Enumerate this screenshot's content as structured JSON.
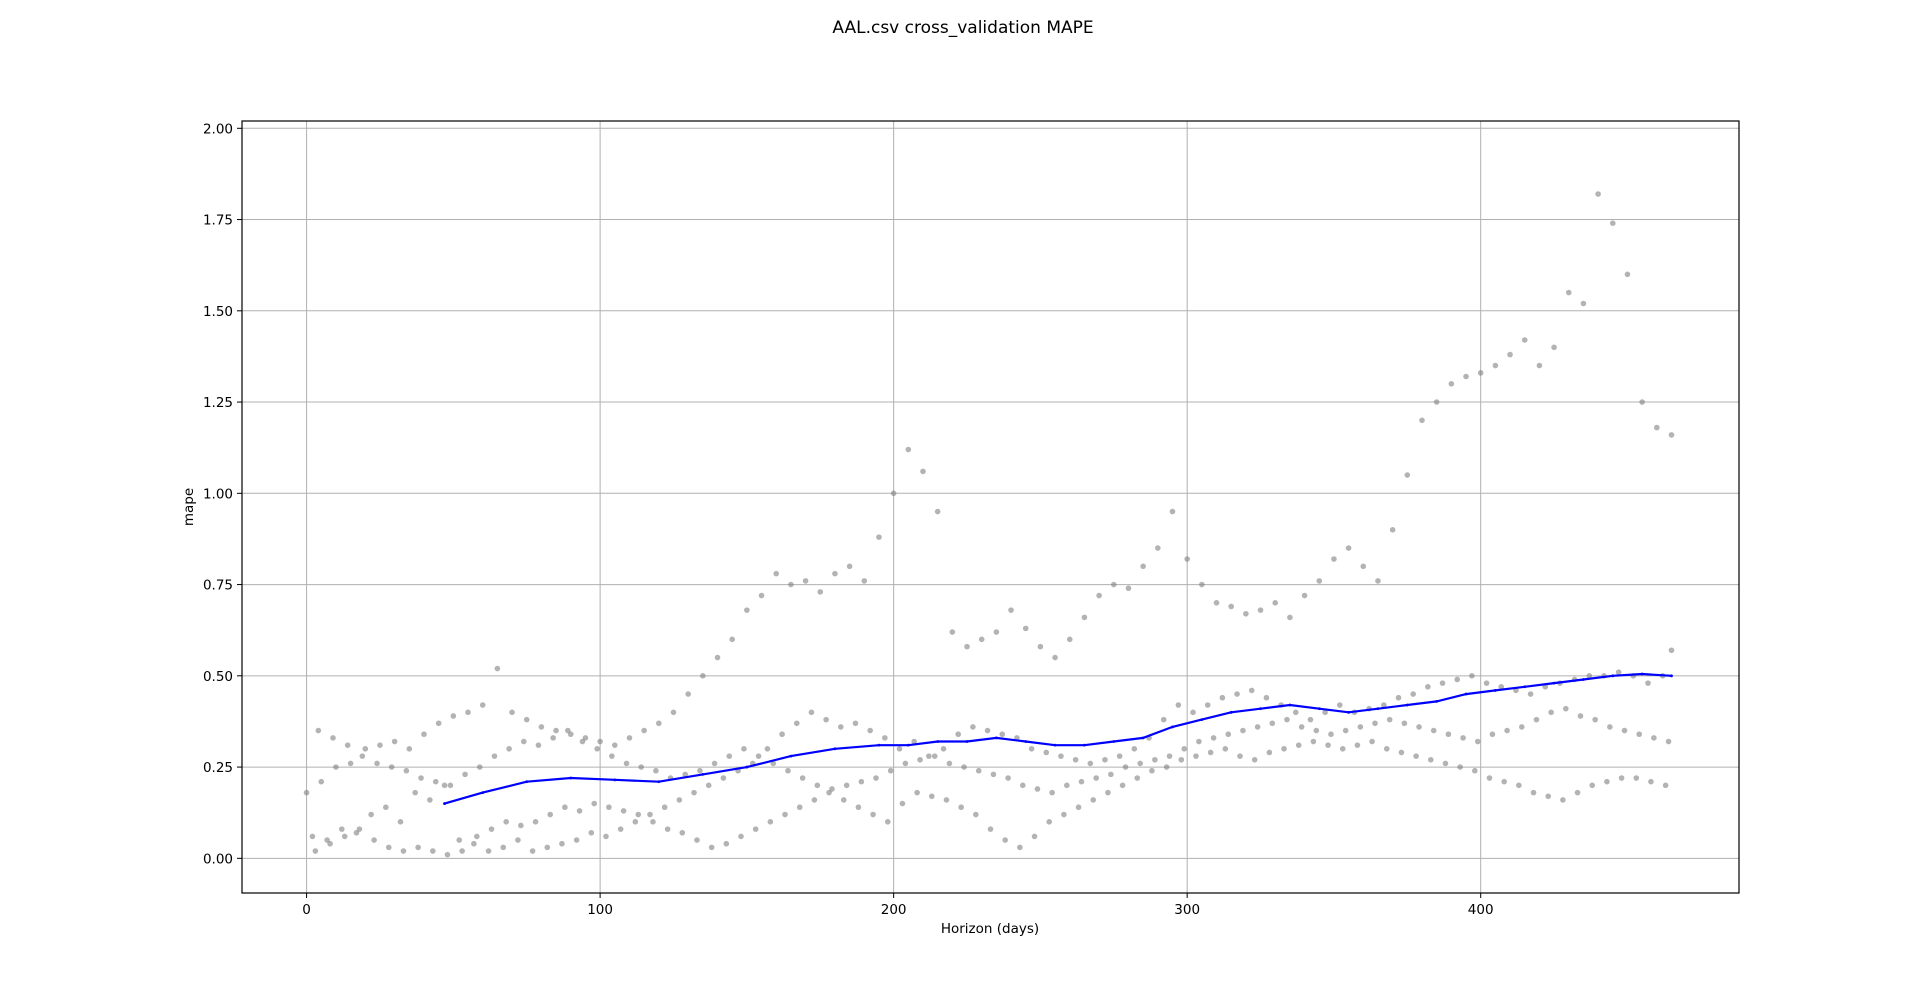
{
  "chart_data": {
    "type": "scatter",
    "title": "AAL.csv cross_validation MAPE",
    "xlabel": "Horizon (days)",
    "ylabel": "mape",
    "xlim": [
      -22,
      488
    ],
    "ylim": [
      -0.095,
      2.02
    ],
    "x_ticks": [
      0,
      100,
      200,
      300,
      400
    ],
    "y_ticks": [
      0.0,
      0.25,
      0.5,
      0.75,
      1.0,
      1.25,
      1.5,
      1.75,
      2.0
    ],
    "grid": true,
    "colors": {
      "points": "#808080",
      "rolling": "#0000ff"
    },
    "series": [
      {
        "kind": "points",
        "x": [
          0,
          5,
          10,
          15,
          20,
          25,
          30,
          35,
          40,
          45,
          50,
          55,
          60,
          65,
          70,
          75,
          80,
          85,
          90,
          95,
          100,
          105,
          110,
          115,
          120,
          125,
          130,
          135,
          140,
          145,
          150,
          155,
          160,
          165,
          170,
          175,
          180,
          185,
          190,
          195,
          200,
          205,
          210,
          215,
          220,
          225,
          230,
          235,
          240,
          245,
          250,
          255,
          260,
          265,
          270,
          275,
          280,
          285,
          290,
          295,
          300,
          305,
          310,
          315,
          320,
          325,
          330,
          335,
          340,
          345,
          350,
          355,
          360,
          365,
          370,
          375,
          380,
          385,
          390,
          395,
          400,
          405,
          410,
          415,
          420,
          425,
          430,
          435,
          440,
          445,
          450,
          455,
          460,
          465,
          2,
          7,
          12,
          17,
          22,
          27,
          32,
          37,
          42,
          47,
          52,
          57,
          62,
          67,
          72,
          77,
          82,
          87,
          92,
          97,
          102,
          107,
          112,
          117,
          122,
          127,
          132,
          137,
          142,
          147,
          152,
          157,
          162,
          167,
          172,
          177,
          182,
          187,
          192,
          197,
          202,
          207,
          212,
          217,
          222,
          227,
          232,
          237,
          242,
          247,
          252,
          257,
          262,
          267,
          272,
          277,
          282,
          287,
          292,
          297,
          302,
          307,
          312,
          317,
          322,
          327,
          332,
          337,
          342,
          347,
          352,
          357,
          362,
          367,
          372,
          377,
          382,
          387,
          392,
          397,
          402,
          407,
          412,
          417,
          422,
          427,
          432,
          437,
          442,
          447,
          452,
          457,
          462,
          465,
          3,
          8,
          13,
          18,
          23,
          28,
          33,
          38,
          43,
          48,
          53,
          58,
          63,
          68,
          73,
          78,
          83,
          88,
          93,
          98,
          103,
          108,
          113,
          118,
          123,
          128,
          133,
          138,
          143,
          148,
          153,
          158,
          163,
          168,
          173,
          178,
          183,
          188,
          193,
          198,
          203,
          208,
          213,
          218,
          223,
          228,
          233,
          238,
          243,
          248,
          253,
          258,
          263,
          268,
          273,
          278,
          283,
          288,
          293,
          298,
          303,
          308,
          313,
          318,
          323,
          328,
          333,
          338,
          343,
          348,
          353,
          358,
          363,
          368,
          373,
          378,
          383,
          388,
          393,
          398,
          403,
          408,
          413,
          418,
          423,
          428,
          433,
          438,
          443,
          448,
          453,
          458,
          463,
          4,
          9,
          14,
          19,
          24,
          29,
          34,
          39,
          44,
          49,
          54,
          59,
          64,
          69,
          74,
          79,
          84,
          89,
          94,
          99,
          104,
          109,
          114,
          119,
          124,
          129,
          134,
          139,
          144,
          149,
          154,
          159,
          164,
          169,
          174,
          179,
          184,
          189,
          194,
          199,
          204,
          209,
          214,
          219,
          224,
          229,
          234,
          239,
          244,
          249,
          254,
          259,
          264,
          269,
          274,
          279,
          284,
          289,
          294,
          299,
          304,
          309,
          314,
          319,
          324,
          329,
          334,
          339,
          344,
          349,
          354,
          359,
          364,
          369,
          374,
          379,
          384,
          389,
          394,
          399,
          404,
          409,
          414,
          419,
          424,
          429,
          434,
          439,
          444,
          449,
          454,
          459,
          464
        ],
        "y": [
          0.18,
          0.21,
          0.25,
          0.26,
          0.3,
          0.31,
          0.32,
          0.3,
          0.34,
          0.37,
          0.39,
          0.4,
          0.42,
          0.52,
          0.4,
          0.38,
          0.36,
          0.35,
          0.34,
          0.33,
          0.32,
          0.31,
          0.33,
          0.35,
          0.37,
          0.4,
          0.45,
          0.5,
          0.55,
          0.6,
          0.68,
          0.72,
          0.78,
          0.75,
          0.76,
          0.73,
          0.78,
          0.8,
          0.76,
          0.88,
          1.0,
          1.12,
          1.06,
          0.95,
          0.62,
          0.58,
          0.6,
          0.62,
          0.68,
          0.63,
          0.58,
          0.55,
          0.6,
          0.66,
          0.72,
          0.75,
          0.74,
          0.8,
          0.85,
          0.95,
          0.82,
          0.75,
          0.7,
          0.69,
          0.67,
          0.68,
          0.7,
          0.66,
          0.72,
          0.76,
          0.82,
          0.85,
          0.8,
          0.76,
          0.9,
          1.05,
          1.2,
          1.25,
          1.3,
          1.32,
          1.33,
          1.35,
          1.38,
          1.42,
          1.35,
          1.4,
          1.55,
          1.52,
          1.82,
          1.74,
          1.6,
          1.25,
          1.18,
          1.16,
          0.06,
          0.05,
          0.08,
          0.07,
          0.12,
          0.14,
          0.1,
          0.18,
          0.16,
          0.2,
          0.05,
          0.04,
          0.02,
          0.03,
          0.05,
          0.02,
          0.03,
          0.04,
          0.05,
          0.07,
          0.06,
          0.08,
          0.1,
          0.12,
          0.14,
          0.16,
          0.18,
          0.2,
          0.22,
          0.24,
          0.26,
          0.3,
          0.34,
          0.37,
          0.4,
          0.38,
          0.36,
          0.37,
          0.35,
          0.33,
          0.3,
          0.32,
          0.28,
          0.3,
          0.34,
          0.36,
          0.35,
          0.34,
          0.33,
          0.3,
          0.29,
          0.28,
          0.27,
          0.26,
          0.27,
          0.28,
          0.3,
          0.33,
          0.38,
          0.42,
          0.4,
          0.42,
          0.44,
          0.45,
          0.46,
          0.44,
          0.42,
          0.4,
          0.38,
          0.4,
          0.42,
          0.4,
          0.41,
          0.42,
          0.44,
          0.45,
          0.47,
          0.48,
          0.49,
          0.5,
          0.48,
          0.47,
          0.46,
          0.45,
          0.47,
          0.48,
          0.49,
          0.5,
          0.5,
          0.51,
          0.5,
          0.48,
          0.5,
          0.57,
          0.02,
          0.04,
          0.06,
          0.08,
          0.05,
          0.03,
          0.02,
          0.03,
          0.02,
          0.01,
          0.02,
          0.06,
          0.08,
          0.1,
          0.09,
          0.1,
          0.12,
          0.14,
          0.13,
          0.15,
          0.14,
          0.13,
          0.12,
          0.1,
          0.08,
          0.07,
          0.05,
          0.03,
          0.04,
          0.06,
          0.08,
          0.1,
          0.12,
          0.14,
          0.16,
          0.18,
          0.16,
          0.14,
          0.12,
          0.1,
          0.15,
          0.18,
          0.17,
          0.16,
          0.14,
          0.12,
          0.08,
          0.05,
          0.03,
          0.06,
          0.1,
          0.12,
          0.14,
          0.16,
          0.18,
          0.2,
          0.22,
          0.24,
          0.25,
          0.27,
          0.28,
          0.29,
          0.3,
          0.28,
          0.27,
          0.29,
          0.3,
          0.31,
          0.32,
          0.31,
          0.3,
          0.31,
          0.32,
          0.3,
          0.29,
          0.28,
          0.27,
          0.26,
          0.25,
          0.24,
          0.22,
          0.21,
          0.2,
          0.18,
          0.17,
          0.16,
          0.18,
          0.2,
          0.21,
          0.22,
          0.22,
          0.21,
          0.2,
          0.35,
          0.33,
          0.31,
          0.28,
          0.26,
          0.25,
          0.24,
          0.22,
          0.21,
          0.2,
          0.23,
          0.25,
          0.28,
          0.3,
          0.32,
          0.31,
          0.33,
          0.35,
          0.32,
          0.3,
          0.28,
          0.26,
          0.25,
          0.24,
          0.22,
          0.23,
          0.24,
          0.26,
          0.28,
          0.3,
          0.28,
          0.26,
          0.24,
          0.22,
          0.2,
          0.19,
          0.2,
          0.21,
          0.22,
          0.24,
          0.26,
          0.27,
          0.28,
          0.26,
          0.25,
          0.24,
          0.23,
          0.22,
          0.2,
          0.19,
          0.18,
          0.2,
          0.21,
          0.22,
          0.23,
          0.25,
          0.26,
          0.27,
          0.28,
          0.3,
          0.32,
          0.33,
          0.34,
          0.35,
          0.36,
          0.37,
          0.38,
          0.36,
          0.35,
          0.34,
          0.35,
          0.36,
          0.37,
          0.38,
          0.37,
          0.36,
          0.35,
          0.34,
          0.33,
          0.32,
          0.34,
          0.35,
          0.36,
          0.38,
          0.4,
          0.41,
          0.39,
          0.38,
          0.36,
          0.35,
          0.34,
          0.33,
          0.32
        ]
      },
      {
        "kind": "line",
        "x": [
          47,
          60,
          75,
          90,
          105,
          120,
          135,
          150,
          165,
          180,
          195,
          205,
          215,
          225,
          235,
          245,
          255,
          265,
          275,
          285,
          295,
          305,
          315,
          325,
          335,
          345,
          355,
          365,
          375,
          385,
          395,
          405,
          415,
          425,
          435,
          445,
          455,
          465
        ],
        "y": [
          0.15,
          0.18,
          0.21,
          0.22,
          0.215,
          0.21,
          0.23,
          0.25,
          0.28,
          0.3,
          0.31,
          0.31,
          0.32,
          0.32,
          0.33,
          0.32,
          0.31,
          0.31,
          0.32,
          0.33,
          0.36,
          0.38,
          0.4,
          0.41,
          0.42,
          0.41,
          0.4,
          0.41,
          0.42,
          0.43,
          0.45,
          0.46,
          0.47,
          0.48,
          0.49,
          0.5,
          0.505,
          0.5
        ]
      }
    ]
  }
}
